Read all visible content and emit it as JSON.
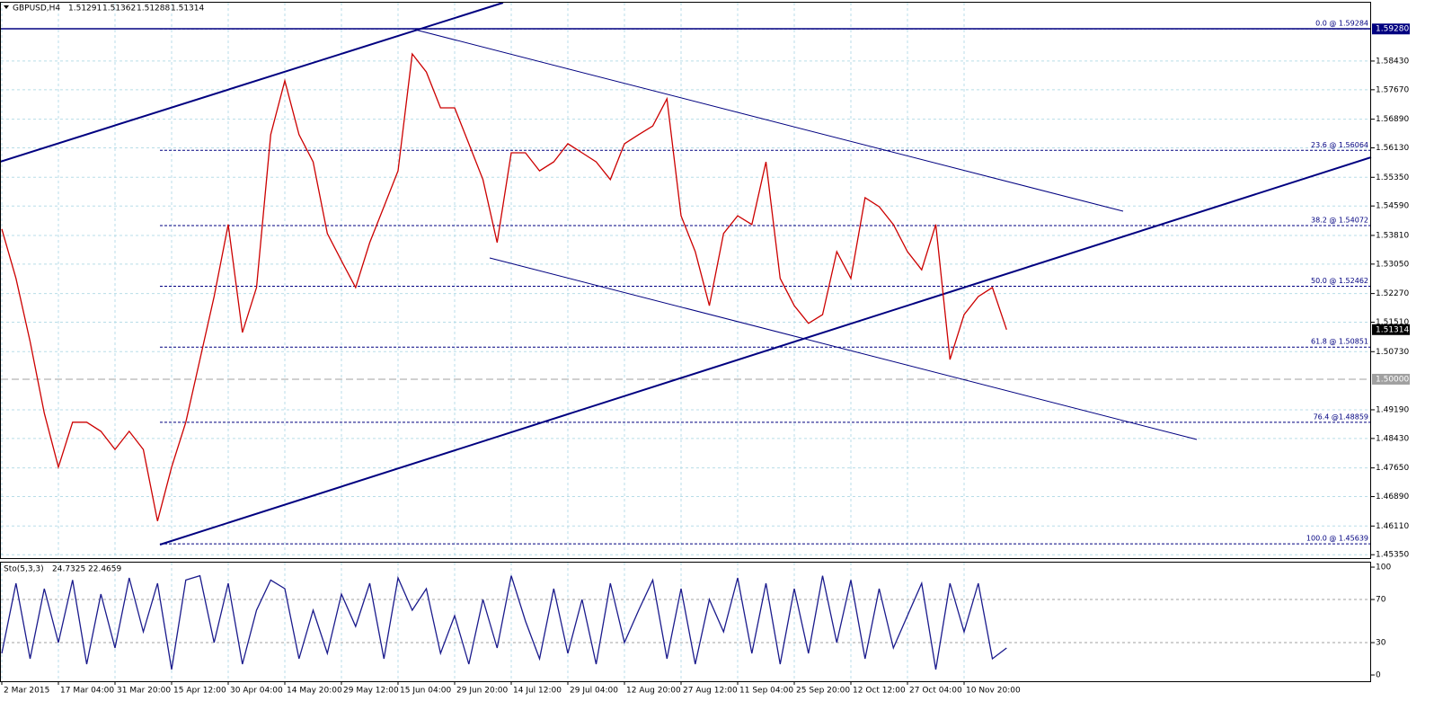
{
  "header": {
    "symbol": "GBPUSD,H4",
    "ohlc": [
      1.51291,
      1.51362,
      1.51288,
      1.51314
    ]
  },
  "chart_data": [
    {
      "type": "line",
      "color": "#cc0000",
      "categories": [
        "2 Mar 2015",
        null,
        null,
        null,
        "17 Mar 04:00",
        null,
        null,
        null,
        "31 Mar 20:00",
        null,
        null,
        null,
        "15 Apr 12:00",
        null,
        null,
        null,
        "30 Apr 04:00",
        null,
        null,
        null,
        "14 May 20:00",
        null,
        null,
        null,
        "29 May 12:00",
        null,
        null,
        null,
        "15 Jun 04:00",
        null,
        null,
        null,
        "29 Jun 20:00",
        null,
        null,
        null,
        "14 Jul 12:00",
        null,
        null,
        null,
        "29 Jul 04:00",
        null,
        null,
        null,
        "12 Aug 20:00",
        null,
        null,
        null,
        "27 Aug 12:00",
        null,
        null,
        null,
        "11 Sep 04:00",
        null,
        null,
        null,
        "25 Sep 20:00",
        null,
        null,
        null,
        "12 Oct 12:00",
        null,
        null,
        null,
        "27 Oct 04:00",
        null,
        null,
        null,
        "10 Nov 20:00",
        null,
        null,
        null
      ],
      "values": [
        1.5398,
        1.5267,
        1.51,
        1.491,
        1.4767,
        1.4886,
        1.4886,
        1.4862,
        1.4814,
        1.4862,
        1.4814,
        1.4624,
        1.4767,
        1.4886,
        1.5052,
        1.5219,
        1.541,
        1.5124,
        1.5243,
        1.5648,
        1.5791,
        1.5648,
        1.5576,
        1.5386,
        1.5314,
        1.5243,
        1.5362,
        1.5457,
        1.5552,
        1.5862,
        1.5814,
        1.5719,
        1.5719,
        1.5624,
        1.5529,
        1.5362,
        1.56,
        1.56,
        1.5552,
        1.5576,
        1.5624,
        1.56,
        1.5576,
        1.5529,
        1.5624,
        1.5648,
        1.5671,
        1.5743,
        1.5433,
        1.5338,
        1.5195,
        1.5386,
        1.5433,
        1.541,
        1.5576,
        1.5267,
        1.5195,
        1.5148,
        1.5171,
        1.5338,
        1.5267,
        1.5481,
        1.5457,
        1.541,
        1.5338,
        1.529,
        1.541,
        1.5052,
        1.5171,
        1.5219,
        1.5243,
        1.51314
      ],
      "ylim": [
        1.4526,
        1.6
      ],
      "yticks": [
        {
          "value": 1.4535,
          "label": "1.45350"
        },
        {
          "value": 1.4611,
          "label": "1.46110"
        },
        {
          "value": 1.4689,
          "label": "1.46890"
        },
        {
          "value": 1.4765,
          "label": "1.47650"
        },
        {
          "value": 1.4843,
          "label": "1.48430"
        },
        {
          "value": 1.4919,
          "label": "1.49190"
        },
        {
          "value": 1.5073,
          "label": "1.50730"
        },
        {
          "value": 1.5151,
          "label": "1.51510"
        },
        {
          "value": 1.5227,
          "label": "1.52270"
        },
        {
          "value": 1.5305,
          "label": "1.53050"
        },
        {
          "value": 1.5381,
          "label": "1.53810"
        },
        {
          "value": 1.5459,
          "label": "1.54590"
        },
        {
          "value": 1.5535,
          "label": "1.55350"
        },
        {
          "value": 1.5613,
          "label": "1.56130"
        },
        {
          "value": 1.5689,
          "label": "1.56890"
        },
        {
          "value": 1.5767,
          "label": "1.57670"
        },
        {
          "value": 1.5843,
          "label": "1.58430"
        }
      ],
      "grid": true,
      "fib_levels": [
        {
          "value": 1.59284,
          "label": "0.0 @ 1.59284"
        },
        {
          "value": 1.56064,
          "label": "23.6 @ 1.56064"
        },
        {
          "value": 1.54072,
          "label": "38.2 @ 1.54072"
        },
        {
          "value": 1.52462,
          "label": "50.0 @ 1.52462"
        },
        {
          "value": 1.50851,
          "label": "61.8 @ 1.50851"
        },
        {
          "value": 1.48859,
          "label": "76.4 @1.48859"
        },
        {
          "value": 1.45639,
          "label": "100.0 @ 1.45639"
        }
      ],
      "price_markers": [
        {
          "value": 1.5928,
          "label": "1.59280",
          "color": "#000080"
        },
        {
          "value": 1.51314,
          "label": "1.51314",
          "color": "#000000"
        },
        {
          "value": 1.5,
          "label": "1.50000",
          "color": "#a0a0a0"
        }
      ]
    },
    {
      "type": "line",
      "title": "Sto(5,3,3)",
      "readings": [
        24.7325,
        22.4659
      ],
      "color": "#1a1a8c",
      "values": [
        20,
        85,
        15,
        80,
        30,
        88,
        10,
        75,
        25,
        90,
        40,
        85,
        5,
        88,
        92,
        30,
        85,
        10,
        60,
        88,
        80,
        15,
        60,
        20,
        75,
        45,
        85,
        15,
        90,
        60,
        80,
        20,
        55,
        10,
        70,
        25,
        92,
        50,
        15,
        80,
        20,
        70,
        10,
        85,
        30,
        60,
        88,
        15,
        80,
        10,
        70,
        40,
        90,
        20,
        85,
        10,
        80,
        20,
        92,
        30,
        88,
        15,
        80,
        25,
        55,
        85,
        5,
        85,
        40,
        85,
        15,
        25
      ],
      "ylim": [
        -5.8,
        104.2
      ],
      "yticks": [
        0,
        30,
        70,
        100
      ],
      "levels": [
        30,
        70
      ],
      "grid": true
    }
  ]
}
